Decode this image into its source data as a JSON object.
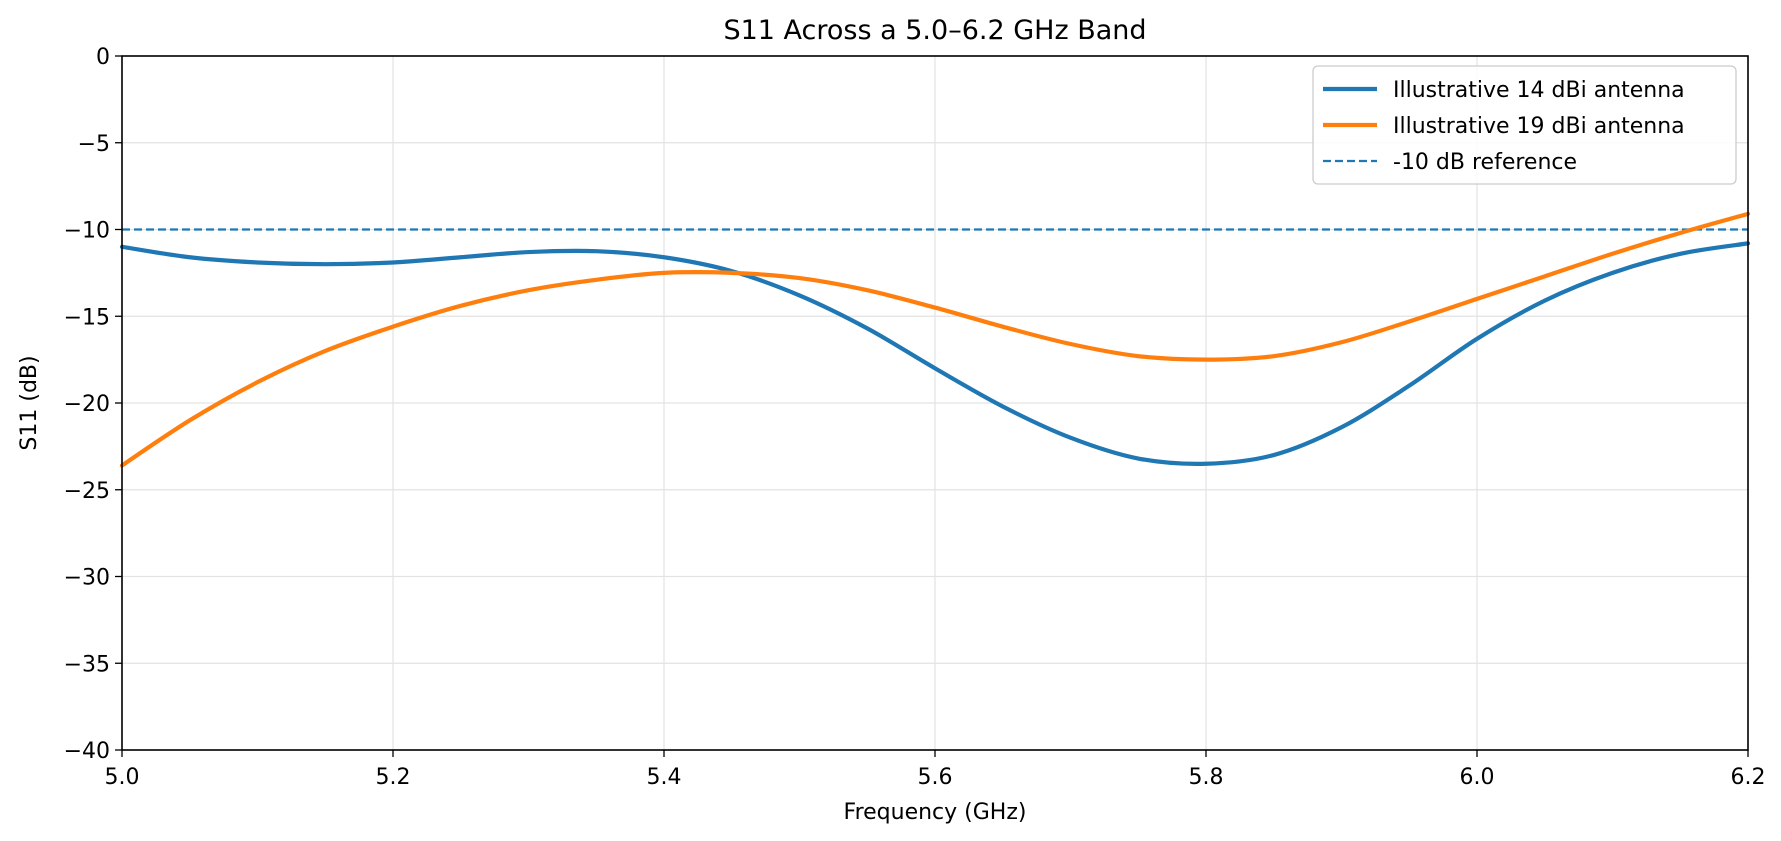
{
  "chart_data": {
    "type": "line",
    "title": "S11 Across a 5.0–6.2 GHz Band",
    "xlabel": "Frequency (GHz)",
    "ylabel": "S11 (dB)",
    "xlim": [
      5.0,
      6.2
    ],
    "ylim": [
      -40,
      0
    ],
    "xticks": [
      5.0,
      5.2,
      5.4,
      5.6,
      5.8,
      6.0,
      6.2
    ],
    "xtick_labels": [
      "5.0",
      "5.2",
      "5.4",
      "5.6",
      "5.8",
      "6.0",
      "6.2"
    ],
    "yticks": [
      0,
      -5,
      -10,
      -15,
      -20,
      -25,
      -30,
      -35,
      -40
    ],
    "ytick_labels": [
      "0",
      "−5",
      "−10",
      "−15",
      "−20",
      "−25",
      "−30",
      "−35",
      "−40"
    ],
    "grid": true,
    "legend_position": "top-right",
    "x": [
      5.0,
      5.05,
      5.1,
      5.15,
      5.2,
      5.25,
      5.3,
      5.35,
      5.4,
      5.45,
      5.5,
      5.55,
      5.6,
      5.65,
      5.7,
      5.75,
      5.8,
      5.85,
      5.9,
      5.95,
      6.0,
      6.05,
      6.1,
      6.15,
      6.2
    ],
    "series": [
      {
        "name": "Illustrative 14 dBi antenna",
        "color": "#1f77b4",
        "style": "solid",
        "values": [
          -11.0,
          -11.6,
          -11.9,
          -12.0,
          -11.9,
          -11.6,
          -11.3,
          -11.25,
          -11.6,
          -12.4,
          -13.8,
          -15.7,
          -18.0,
          -20.2,
          -22.0,
          -23.2,
          -23.5,
          -23.0,
          -21.4,
          -19.0,
          -16.3,
          -14.1,
          -12.5,
          -11.4,
          -10.8
        ]
      },
      {
        "name": "Illustrative 19 dBi antenna",
        "color": "#ff7f0e",
        "style": "solid",
        "values": [
          -23.6,
          -21.0,
          -18.8,
          -17.0,
          -15.6,
          -14.4,
          -13.5,
          -12.9,
          -12.5,
          -12.5,
          -12.8,
          -13.5,
          -14.5,
          -15.6,
          -16.6,
          -17.3,
          -17.5,
          -17.3,
          -16.5,
          -15.3,
          -14.0,
          -12.7,
          -11.4,
          -10.2,
          -9.1
        ]
      },
      {
        "name": "-10 dB reference",
        "color": "#1f77b4",
        "style": "dashed",
        "values": [
          -10,
          -10,
          -10,
          -10,
          -10,
          -10,
          -10,
          -10,
          -10,
          -10,
          -10,
          -10,
          -10,
          -10,
          -10,
          -10,
          -10,
          -10,
          -10,
          -10,
          -10,
          -10,
          -10,
          -10,
          -10
        ]
      }
    ]
  }
}
